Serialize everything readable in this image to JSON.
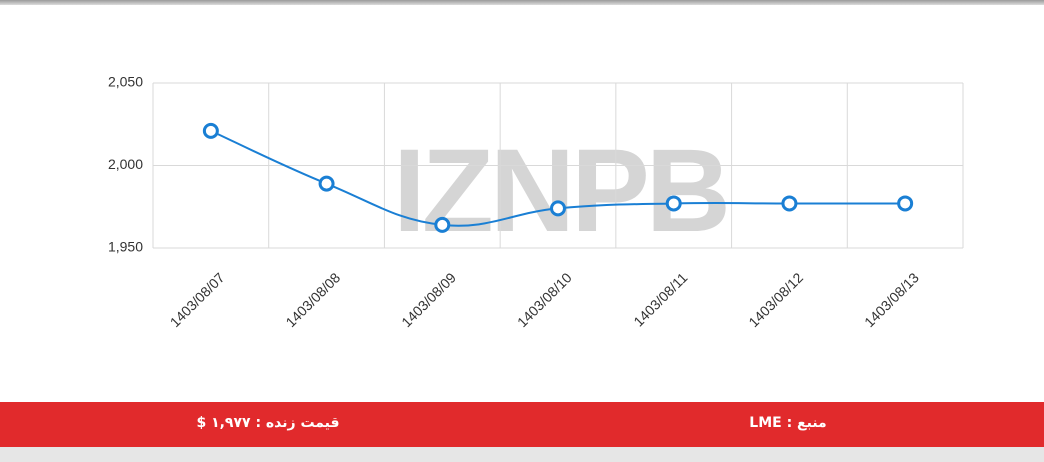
{
  "chart_data": {
    "type": "line",
    "watermark": "IZNPB",
    "categories": [
      "1403/08/07",
      "1403/08/08",
      "1403/08/09",
      "1403/08/10",
      "1403/08/11",
      "1403/08/12",
      "1403/08/13"
    ],
    "values": [
      2021,
      1989,
      1964,
      1974,
      1977,
      1977,
      1977
    ],
    "color": "#1a7fd4",
    "ylim": [
      1950,
      2050
    ],
    "yticks": [
      {
        "value": 1950,
        "label": "1,950"
      },
      {
        "value": 2000,
        "label": "2,000"
      },
      {
        "value": 2050,
        "label": "2,050"
      }
    ],
    "grid": true
  },
  "footer": {
    "live_price": "قیمت زنده : ۱,۹۷۷ $",
    "source": "منبع : LME"
  }
}
